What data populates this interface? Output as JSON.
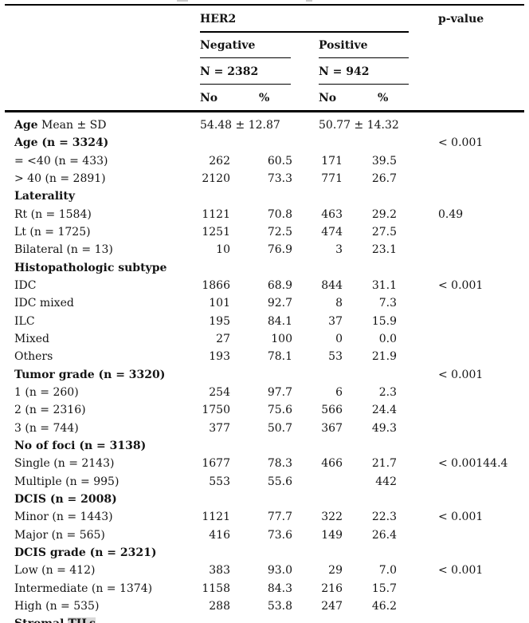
{
  "header": {
    "her2": "HER2",
    "p_value": "p-value",
    "groups": [
      {
        "name": "Negative",
        "n": "N = 2382"
      },
      {
        "name": "Positive",
        "n": "N = 942"
      }
    ],
    "col_no": "No",
    "col_pct": "%"
  },
  "highlight_color": "#d9d9d9",
  "rows": [
    {
      "prefix": "Age",
      "label": " Mean ± SD",
      "neg_span": "54.48 ± 12.87",
      "pos_span": "50.77 ± 14.32"
    },
    {
      "label": "Age (n = 3324)",
      "bold": true,
      "p": "< 0.001"
    },
    {
      "label": "= <40 (n = 433)",
      "neg_no": "262",
      "neg_pct": "60.5",
      "pos_no": "171",
      "pos_pct": "39.5"
    },
    {
      "label": "> 40 (n = 2891)",
      "neg_no": "2120",
      "neg_pct": "73.3",
      "pos_no": "771",
      "pos_pct": "26.7"
    },
    {
      "label": "Laterality",
      "bold": true
    },
    {
      "label": "Rt (n = 1584)",
      "neg_no": "1121",
      "neg_pct": "70.8",
      "pos_no": "463",
      "pos_pct": "29.2",
      "p": "0.49"
    },
    {
      "label": "Lt (n = 1725)",
      "neg_no": "1251",
      "neg_pct": "72.5",
      "pos_no": "474",
      "pos_pct": "27.5"
    },
    {
      "label": "Bilateral (n = 13)",
      "neg_no": "10",
      "neg_pct": "76.9",
      "pos_no": "3",
      "pos_pct": "23.1"
    },
    {
      "label": "Histopathologic subtype",
      "bold": true
    },
    {
      "label": "IDC",
      "neg_no": "1866",
      "neg_pct": "68.9",
      "pos_no": "844",
      "pos_pct": "31.1",
      "p": "< 0.001"
    },
    {
      "label": "IDC mixed",
      "neg_no": "101",
      "neg_pct": "92.7",
      "pos_no": "8",
      "pos_pct": "7.3"
    },
    {
      "label": "ILC",
      "neg_no": "195",
      "neg_pct": "84.1",
      "pos_no": "37",
      "pos_pct": "15.9"
    },
    {
      "label": "Mixed",
      "neg_no": "27",
      "neg_pct": "100",
      "pos_no": "0",
      "pos_pct": "0.0"
    },
    {
      "label": "Others",
      "neg_no": "193",
      "neg_pct": "78.1",
      "pos_no": "53",
      "pos_pct": "21.9"
    },
    {
      "label": "Tumor grade (n = 3320)",
      "bold": true,
      "p": "< 0.001"
    },
    {
      "label": "1 (n = 260)",
      "neg_no": "254",
      "neg_pct": "97.7",
      "pos_no": "6",
      "pos_pct": "2.3"
    },
    {
      "label": "2 (n = 2316)",
      "neg_no": "1750",
      "neg_pct": "75.6",
      "pos_no": "566",
      "pos_pct": "24.4"
    },
    {
      "label": "3 (n = 744)",
      "neg_no": "377",
      "neg_pct": "50.7",
      "pos_no": "367",
      "pos_pct": "49.3"
    },
    {
      "label": "No of foci (n = 3138)",
      "bold": true
    },
    {
      "label": "Single (n = 2143)",
      "neg_no": "1677",
      "neg_pct": "78.3",
      "pos_no": "466",
      "pos_pct": "21.7",
      "p": "< 0.00144.4"
    },
    {
      "label": "Multiple (n = 995)",
      "neg_no": "553",
      "neg_pct": "55.6",
      "pos_no": "",
      "pos_pct": "442"
    },
    {
      "label": "DCIS (n = 2008)",
      "bold": true
    },
    {
      "label": "Minor (n = 1443)",
      "neg_no": "1121",
      "neg_pct": "77.7",
      "pos_no": "322",
      "pos_pct": "22.3",
      "p": "< 0.001"
    },
    {
      "label": "Major (n = 565)",
      "neg_no": "416",
      "neg_pct": "73.6",
      "pos_no": "149",
      "pos_pct": "26.4"
    },
    {
      "label": "DCIS grade (n = 2321)",
      "bold": true
    },
    {
      "label": "Low (n = 412)",
      "neg_no": "383",
      "neg_pct": "93.0",
      "pos_no": "29",
      "pos_pct": "7.0",
      "p": "< 0.001"
    },
    {
      "label": "Intermediate (n = 1374)",
      "neg_no": "1158",
      "neg_pct": "84.3",
      "pos_no": "216",
      "pos_pct": "15.7"
    },
    {
      "label": "High (n = 535)",
      "neg_no": "288",
      "neg_pct": "53.8",
      "pos_no": "247",
      "pos_pct": "46.2"
    },
    {
      "prefix": "Stromal ",
      "label": "",
      "hl": "TILs",
      "bold": true
    }
  ]
}
